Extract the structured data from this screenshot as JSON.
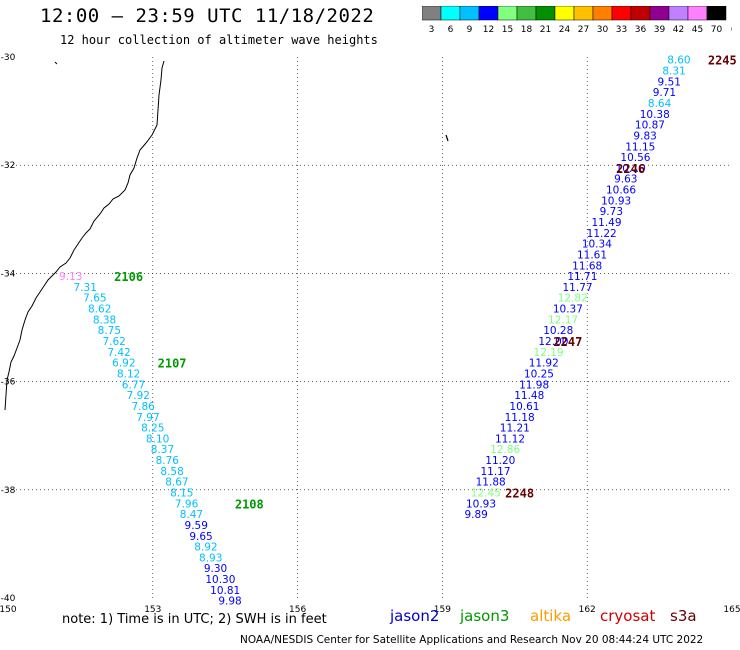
{
  "title": "12:00 – 23:59 UTC 11/18/2022",
  "subtitle": "12 hour collection of altimeter wave heights",
  "note": "note:  1) Time is in UTC;  2) SWH is in feet",
  "footer": "NOAA/NESDIS Center for Satellite Applications and Research     Nov 20 08:44:24 UTC 2022",
  "satellites": [
    {
      "name": "jason2",
      "color": "#0000cc"
    },
    {
      "name": "jason3",
      "color": "#009900"
    },
    {
      "name": "altika",
      "color": "#ff9900"
    },
    {
      "name": "cryosat",
      "color": "#cc0000"
    },
    {
      "name": "s3a",
      "color": "#660000"
    }
  ],
  "colorbar": {
    "colors": [
      "#808080",
      "#00ffff",
      "#00c0ff",
      "#0000ff",
      "#80ff80",
      "#40c040",
      "#009000",
      "#ffff00",
      "#ffc000",
      "#ff8000",
      "#ff0000",
      "#c00000",
      "#900090",
      "#c080ff",
      "#ff80ff",
      "#000000"
    ],
    "labels": [
      "3",
      "6",
      "9",
      "12",
      "15",
      "18",
      "21",
      "24",
      "27",
      "30",
      "33",
      "36",
      "39",
      "42",
      "45",
      "70",
      "(ft)"
    ]
  },
  "chart_data": {
    "type": "scatter",
    "xlim": [
      150,
      165
    ],
    "ylim": [
      -40,
      -30
    ],
    "x_ticks": [
      "150",
      "153",
      "156",
      "159",
      "162",
      "165"
    ],
    "y_ticks": [
      "-30",
      "-32",
      "-34",
      "-36",
      "-38",
      "-40"
    ],
    "tracks": [
      {
        "label": "2106",
        "label_color": "#009900",
        "label_at": [
          152.2,
          -34.05
        ],
        "points": [
          [
            151.3,
            -34.05,
            "9.13",
            "#ff80ff"
          ],
          [
            151.6,
            -34.25,
            "7.31",
            "#00c0ff"
          ],
          [
            151.8,
            -34.45,
            "7.65",
            "#00c0ff"
          ],
          [
            151.9,
            -34.65,
            "8.62",
            "#00c0ff"
          ],
          [
            152.0,
            -34.85,
            "8.38",
            "#00c0ff"
          ],
          [
            152.1,
            -35.05,
            "8.75",
            "#00c0ff"
          ],
          [
            152.2,
            -35.25,
            "7.62",
            "#00c0ff"
          ],
          [
            152.3,
            -35.45,
            "7.42",
            "#00c0ff"
          ],
          [
            152.4,
            -35.65,
            "6.92",
            "#00c0ff"
          ],
          [
            152.5,
            -35.85,
            "8.12",
            "#00c0ff"
          ],
          [
            152.6,
            -36.05,
            "6.77",
            "#00c0ff"
          ],
          [
            152.7,
            -36.25,
            "7.92",
            "#00c0ff"
          ],
          [
            152.8,
            -36.45,
            "7.86",
            "#00c0ff"
          ],
          [
            152.9,
            -36.65,
            "7.97",
            "#00c0ff"
          ],
          [
            153.0,
            -36.85,
            "8.25",
            "#00c0ff"
          ],
          [
            153.1,
            -37.05,
            "8.10",
            "#00c0ff"
          ],
          [
            153.2,
            -37.25,
            "8.37",
            "#00c0ff"
          ],
          [
            153.3,
            -37.45,
            "8.76",
            "#00c0ff"
          ],
          [
            153.4,
            -37.65,
            "8.58",
            "#00c0ff"
          ],
          [
            153.5,
            -37.85,
            "8.67",
            "#00c0ff"
          ],
          [
            153.6,
            -38.05,
            "8.15",
            "#00c0ff"
          ],
          [
            153.7,
            -38.25,
            "7.96",
            "#00c0ff"
          ],
          [
            153.8,
            -38.45,
            "8.47",
            "#00c0ff"
          ],
          [
            153.9,
            -38.65,
            "9.59",
            "#0000ff"
          ],
          [
            154.0,
            -38.85,
            "9.65",
            "#0000ff"
          ],
          [
            154.1,
            -39.05,
            "8.92",
            "#00c0ff"
          ],
          [
            154.2,
            -39.25,
            "8.93",
            "#00c0ff"
          ],
          [
            154.3,
            -39.45,
            "9.30",
            "#0000ff"
          ],
          [
            154.4,
            -39.65,
            "10.30",
            "#0000ff"
          ],
          [
            154.5,
            -39.85,
            "10.81",
            "#0000ff"
          ],
          [
            154.6,
            -40.05,
            "9.98",
            "#0000ff"
          ]
        ]
      },
      {
        "label": "2107",
        "label_color": "#009900",
        "label_at": [
          153.1,
          -35.65
        ],
        "points": []
      },
      {
        "label": "2108",
        "label_color": "#009900",
        "label_at": [
          154.7,
          -38.25
        ],
        "points": []
      },
      {
        "label": "2245",
        "label_color": "#660000",
        "label_at": [
          164.5,
          -30.05
        ],
        "points": [
          [
            163.9,
            -30.05,
            "8.60",
            "#00c0ff"
          ],
          [
            163.8,
            -30.25,
            "8.31",
            "#00c0ff"
          ],
          [
            163.7,
            -30.45,
            "9.51",
            "#0000ff"
          ],
          [
            163.6,
            -30.65,
            "9.71",
            "#0000ff"
          ],
          [
            163.5,
            -30.85,
            "8.64",
            "#00c0ff"
          ],
          [
            163.4,
            -31.05,
            "10.38",
            "#0000ff"
          ],
          [
            163.3,
            -31.25,
            "10.87",
            "#0000ff"
          ],
          [
            163.2,
            -31.45,
            "9.83",
            "#0000ff"
          ],
          [
            163.1,
            -31.65,
            "11.15",
            "#0000ff"
          ],
          [
            163.0,
            -31.85,
            "10.56",
            "#0000ff"
          ],
          [
            162.9,
            -32.05,
            "10.10",
            "#0000ff"
          ],
          [
            162.8,
            -32.25,
            "9.63",
            "#0000ff"
          ],
          [
            162.7,
            -32.45,
            "10.66",
            "#0000ff"
          ],
          [
            162.6,
            -32.65,
            "10.93",
            "#0000ff"
          ],
          [
            162.5,
            -32.85,
            "9.73",
            "#0000ff"
          ],
          [
            162.4,
            -33.05,
            "11.49",
            "#0000ff"
          ],
          [
            162.3,
            -33.25,
            "11.22",
            "#0000ff"
          ],
          [
            162.2,
            -33.45,
            "10.34",
            "#0000ff"
          ],
          [
            162.1,
            -33.65,
            "11.61",
            "#0000ff"
          ],
          [
            162.0,
            -33.85,
            "11.68",
            "#0000ff"
          ],
          [
            161.9,
            -34.05,
            "11.71",
            "#0000ff"
          ],
          [
            161.8,
            -34.25,
            "11.77",
            "#0000ff"
          ],
          [
            161.7,
            -34.45,
            "12.82",
            "#80ff80"
          ],
          [
            161.6,
            -34.65,
            "10.37",
            "#0000ff"
          ],
          [
            161.5,
            -34.85,
            "12.17",
            "#80ff80"
          ],
          [
            161.4,
            -35.05,
            "10.28",
            "#0000ff"
          ],
          [
            161.3,
            -35.25,
            "12.00",
            "#0000ff"
          ],
          [
            161.2,
            -35.45,
            "12.19",
            "#80ff80"
          ],
          [
            161.1,
            -35.65,
            "11.92",
            "#0000ff"
          ],
          [
            161.0,
            -35.85,
            "10.25",
            "#0000ff"
          ],
          [
            160.9,
            -36.05,
            "11.98",
            "#0000ff"
          ],
          [
            160.8,
            -36.25,
            "11.48",
            "#0000ff"
          ],
          [
            160.7,
            -36.45,
            "10.61",
            "#0000ff"
          ],
          [
            160.6,
            -36.65,
            "11.18",
            "#0000ff"
          ],
          [
            160.5,
            -36.85,
            "11.21",
            "#0000ff"
          ],
          [
            160.4,
            -37.05,
            "11.12",
            "#0000ff"
          ],
          [
            160.3,
            -37.25,
            "12.86",
            "#80ff80"
          ],
          [
            160.2,
            -37.45,
            "11.20",
            "#0000ff"
          ],
          [
            160.1,
            -37.65,
            "11.17",
            "#0000ff"
          ],
          [
            160.0,
            -37.85,
            "11.88",
            "#0000ff"
          ],
          [
            159.9,
            -38.05,
            "12.45",
            "#80ff80"
          ],
          [
            159.8,
            -38.25,
            "10.93",
            "#0000ff"
          ],
          [
            159.7,
            -38.45,
            "9.89",
            "#0000ff"
          ]
        ]
      },
      {
        "label": "2246",
        "label_color": "#660000",
        "label_at": [
          162.6,
          -32.05
        ],
        "points": []
      },
      {
        "label": "2247",
        "label_color": "#660000",
        "label_at": [
          161.3,
          -35.25
        ],
        "points": []
      },
      {
        "label": "2248",
        "label_color": "#660000",
        "label_at": [
          160.3,
          -38.05
        ],
        "points": []
      }
    ]
  }
}
